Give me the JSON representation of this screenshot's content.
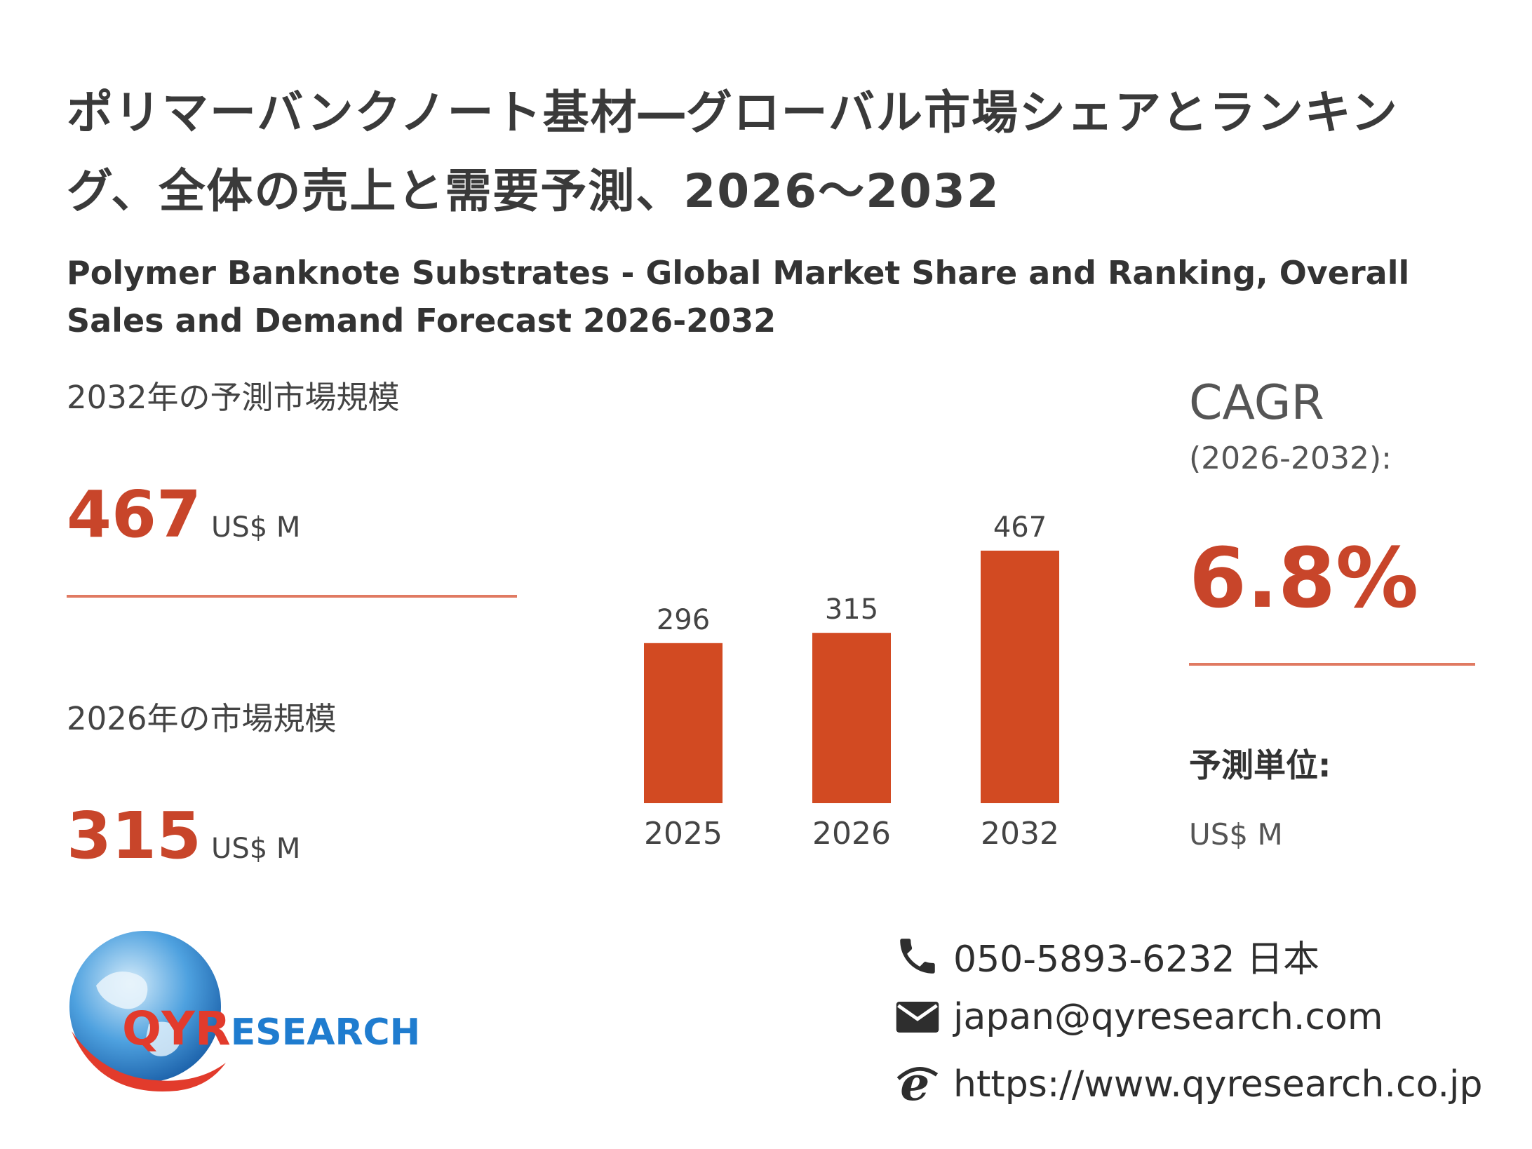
{
  "title_jp": "ポリマーバンクノート基材―グローバル市場シェアとランキング、全体の売上と需要予測、2026～2032",
  "title_en": "Polymer Banknote Substrates - Global Market Share and Ranking, Overall Sales and Demand Forecast 2026-2032",
  "forecast_2032": {
    "label": "2032年の予測市場規模",
    "value": "467",
    "unit": "US$ M"
  },
  "market_2026": {
    "label": "2026年の市場規模",
    "value": "315",
    "unit": "US$ M"
  },
  "cagr": {
    "label": "CAGR",
    "period": "(2026-2032):",
    "value": "6.8%"
  },
  "forecast_unit": {
    "label": "予測単位:",
    "value": "US$ M"
  },
  "chart_data": {
    "type": "bar",
    "categories": [
      "2025",
      "2026",
      "2032"
    ],
    "values": [
      296,
      315,
      467
    ],
    "ylim": [
      0,
      467
    ],
    "grid": false,
    "data_labels": true,
    "bar_color": "#d24a22"
  },
  "contact": {
    "phone": "050-5893-6232 日本",
    "email": "japan@qyresearch.com",
    "website": "https://www.qyresearch.co.jp",
    "icons": [
      "phone-icon",
      "mail-icon",
      "browser-e-icon"
    ]
  },
  "logo": {
    "text_q": "QY",
    "text_r": "R",
    "text_rest": "ESEARCH"
  },
  "colors": {
    "accent": "#c8452a",
    "bar": "#d24a22",
    "divider": "#e07a62",
    "logo_blue": "#1f7ccf",
    "logo_red": "#e23b2c"
  }
}
